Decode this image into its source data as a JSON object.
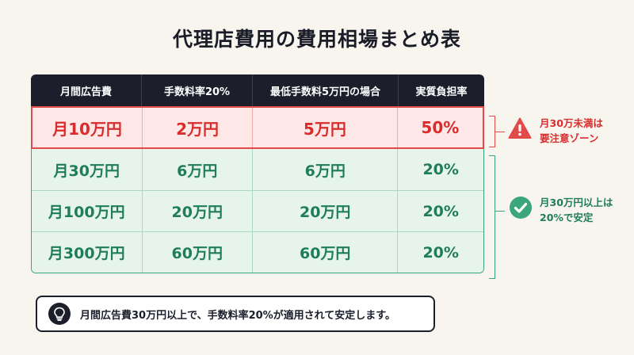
{
  "title": "代理店費用の費用相場まとめ表",
  "table": {
    "headers": [
      "月間広告費",
      "手数料率20%",
      "最低手数料5万円の場合",
      "実質負担率"
    ],
    "rows": [
      {
        "spend": "月10万円",
        "rate_fee": "2万円",
        "min_fee": "5万円",
        "burden": "50%",
        "status": "red"
      },
      {
        "spend": "月30万円",
        "rate_fee": "6万円",
        "min_fee": "6万円",
        "burden": "20%",
        "status": "green"
      },
      {
        "spend": "月100万円",
        "rate_fee": "20万円",
        "min_fee": "20万円",
        "burden": "20%",
        "status": "green"
      },
      {
        "spend": "月300万円",
        "rate_fee": "60万円",
        "min_fee": "60万円",
        "burden": "20%",
        "status": "green"
      }
    ]
  },
  "notes": {
    "warning": {
      "line1": "月30万未満は",
      "line2": "要注意ゾーン",
      "icon": "warning-icon",
      "color": "#e24a4a"
    },
    "stable": {
      "line1": "月30万円以上は",
      "line2": "20%で安定",
      "icon": "check-circle-icon",
      "color": "#3aa67a"
    }
  },
  "tip": {
    "icon": "lightbulb-icon",
    "text": "月間広告費30万円以上で、手数料率20%が適用されて安定します。"
  }
}
